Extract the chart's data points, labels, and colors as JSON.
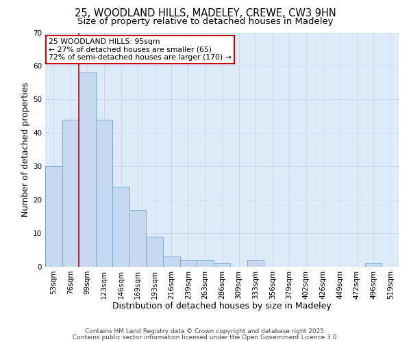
{
  "title_line1": "25, WOODLAND HILLS, MADELEY, CREWE, CW3 9HN",
  "title_line2": "Size of property relative to detached houses in Madeley",
  "xlabel": "Distribution of detached houses by size in Madeley",
  "ylabel": "Number of detached properties",
  "bins": [
    "53sqm",
    "76sqm",
    "99sqm",
    "123sqm",
    "146sqm",
    "169sqm",
    "193sqm",
    "216sqm",
    "239sqm",
    "263sqm",
    "286sqm",
    "309sqm",
    "333sqm",
    "356sqm",
    "379sqm",
    "402sqm",
    "426sqm",
    "449sqm",
    "472sqm",
    "496sqm",
    "519sqm"
  ],
  "values": [
    30,
    44,
    58,
    44,
    24,
    17,
    9,
    3,
    2,
    2,
    1,
    0,
    2,
    0,
    0,
    0,
    0,
    0,
    0,
    1,
    0
  ],
  "bar_color": "#c5d8f0",
  "bar_edge_color": "#7aadd4",
  "red_line_bin_index": 2,
  "red_line_color": "#cc0000",
  "annotation_title": "25 WOODLAND HILLS: 95sqm",
  "annotation_line2": "← 27% of detached houses are smaller (65)",
  "annotation_line3": "72% of semi-detached houses are larger (170) →",
  "annotation_box_color": "#ffffff",
  "annotation_border_color": "#cc0000",
  "ylim": [
    0,
    70
  ],
  "yticks": [
    0,
    10,
    20,
    30,
    40,
    50,
    60,
    70
  ],
  "grid_color": "#c8d8ee",
  "background_color": "#ddeaf8",
  "footer_line1": "Contains HM Land Registry data © Crown copyright and database right 2025.",
  "footer_line2": "Contains public sector information licensed under the Open Government Licence 3.0.",
  "title_fontsize": 10.5,
  "subtitle_fontsize": 9.5,
  "axis_label_fontsize": 9,
  "tick_fontsize": 7.5,
  "annotation_fontsize": 7.8,
  "footer_fontsize": 6.5
}
